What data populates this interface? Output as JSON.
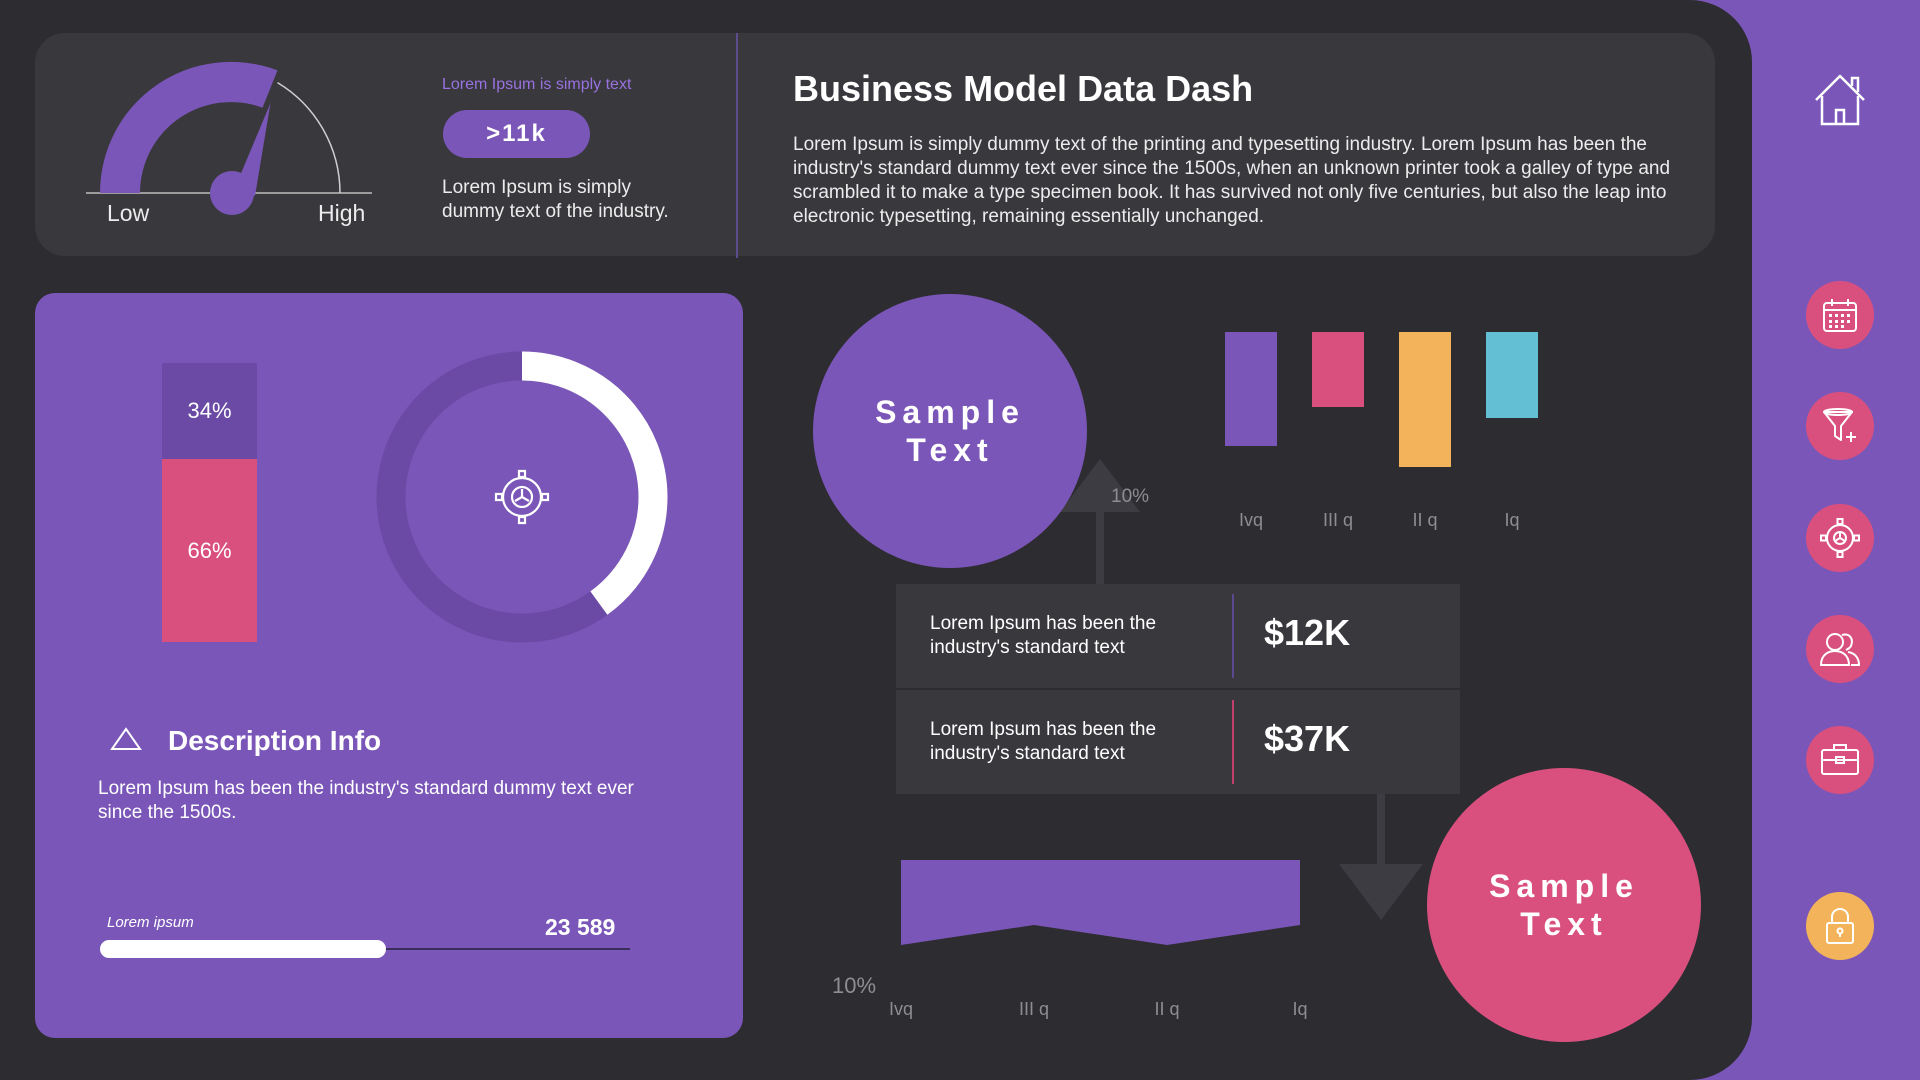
{
  "gauge": {
    "low_label": "Low",
    "high_label": "High"
  },
  "kpi": {
    "caption": "Lorem Ipsum is simply text",
    "value": ">11k",
    "text": "Lorem Ipsum is simply dummy text of the industry."
  },
  "header": {
    "title": "Business Model Data Dash",
    "description": "Lorem Ipsum is simply dummy text of the printing and typesetting industry. Lorem Ipsum has been the industry's standard dummy text ever since the 1500s, when an unknown printer took a galley of type and scrambled it to make a type specimen book. It has survived not only five centuries, but also the leap into electronic typesetting, remaining essentially unchanged."
  },
  "stacked_bar": {
    "top_label": "34%",
    "bottom_label": "66%",
    "top_value": 34,
    "bottom_value": 66
  },
  "donut": {
    "icon": "gear-icon",
    "fraction": 0.4
  },
  "description": {
    "icon": "triangle-outline-icon",
    "title": "Description Info",
    "text": "Lorem Ipsum has been the industry's standard dummy text ever since the 1500s."
  },
  "progress": {
    "label": "Lorem ipsum",
    "value": "23 589",
    "fraction": 0.54
  },
  "circles": {
    "purple_text": "Sample Text",
    "pink_text": "Sample Text"
  },
  "labels": {
    "pct_top": "10%",
    "pct_bottom": "10%"
  },
  "table_rows": [
    {
      "text": "Lorem Ipsum has been the industry's standard text",
      "value": "$12K",
      "accent": "#5a4890"
    },
    {
      "text": "Lorem Ipsum has been the industry's standard text",
      "value": "$37K",
      "accent": "#c0406b"
    }
  ],
  "colors": {
    "purple": "#7a56b8",
    "pink": "#d9507f",
    "orange": "#f2b35b",
    "cyan": "#63bfd4",
    "dark": "#2d2c30",
    "card": "#39383d"
  },
  "sidebar": {
    "home_icon": "home-icon",
    "buttons": [
      {
        "icon": "calendar-icon"
      },
      {
        "icon": "funnel-add-icon"
      },
      {
        "icon": "gear-icon"
      },
      {
        "icon": "users-icon"
      },
      {
        "icon": "briefcase-icon"
      },
      {
        "icon": "lock-icon"
      }
    ]
  },
  "chart_data": [
    {
      "type": "bar",
      "categories": [
        "Ivq",
        "III q",
        "II q",
        "Iq"
      ],
      "series": [
        {
          "values": [
            114,
            -75,
            -135,
            -86
          ]
        }
      ],
      "colors": [
        "#7a56b8",
        "#d9507f",
        "#f2b35b",
        "#63bfd4"
      ]
    },
    {
      "type": "area",
      "categories": [
        "Ivq",
        "III q",
        "II q",
        "Iq"
      ],
      "series": [
        {
          "values": [
            85,
            65,
            85,
            65
          ]
        }
      ],
      "color": "#7a56b8"
    }
  ]
}
